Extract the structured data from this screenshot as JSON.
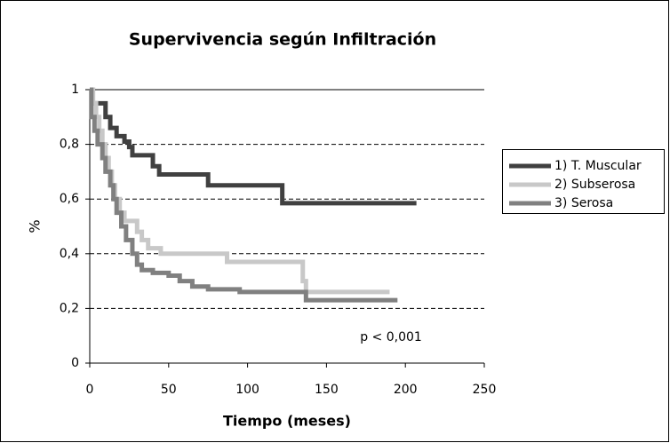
{
  "chart_data": {
    "type": "line",
    "step": true,
    "title": "Supervivencia según Infiltración",
    "x_label": "Tiempo (meses)",
    "y_label": "%",
    "annotation": "p < 0,001",
    "xlim": [
      0,
      250
    ],
    "xticks": [
      0,
      50,
      100,
      150,
      200,
      250
    ],
    "ylim": [
      0,
      1
    ],
    "yticks": [
      0,
      {
        "value": 0.2,
        "label": "0,2"
      },
      {
        "value": 0.4,
        "label": "0,4"
      },
      {
        "value": 0.6,
        "label": "0,6"
      },
      {
        "value": 0.8,
        "label": "0,8"
      },
      1
    ],
    "grid": true,
    "legend": "right",
    "series": [
      {
        "name": "1) T. Muscular",
        "color": "#404040",
        "x": [
          0,
          2,
          10,
          13,
          17,
          22,
          25,
          27,
          40,
          44,
          75,
          122,
          207
        ],
        "values": [
          1,
          0.95,
          0.9,
          0.86,
          0.83,
          0.81,
          0.79,
          0.76,
          0.72,
          0.69,
          0.65,
          0.585,
          0.585
        ]
      },
      {
        "name": "2) Subserosa",
        "color": "#c8c8c8",
        "x": [
          0,
          2,
          4,
          6,
          8,
          10,
          12,
          14,
          16,
          19,
          22,
          30,
          33,
          37,
          45,
          87,
          135,
          137,
          190
        ],
        "values": [
          1,
          0.95,
          0.9,
          0.85,
          0.8,
          0.75,
          0.7,
          0.65,
          0.6,
          0.55,
          0.52,
          0.48,
          0.45,
          0.42,
          0.4,
          0.37,
          0.3,
          0.26,
          0.26
        ]
      },
      {
        "name": "3) Serosa",
        "color": "#808080",
        "x": [
          0,
          1,
          3,
          5,
          8,
          10,
          13,
          15,
          17,
          20,
          23,
          27,
          30,
          33,
          40,
          50,
          57,
          65,
          75,
          95,
          137,
          195
        ],
        "values": [
          1,
          0.9,
          0.85,
          0.8,
          0.75,
          0.7,
          0.65,
          0.6,
          0.55,
          0.5,
          0.45,
          0.4,
          0.36,
          0.34,
          0.33,
          0.32,
          0.3,
          0.28,
          0.27,
          0.26,
          0.23,
          0.23
        ]
      }
    ]
  }
}
